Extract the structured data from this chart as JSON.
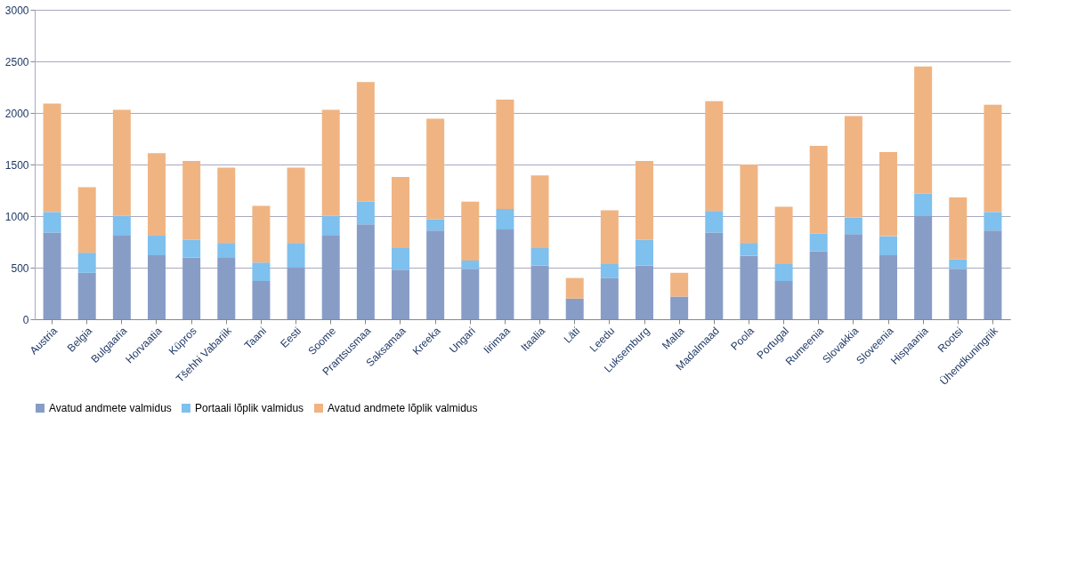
{
  "chart_data": {
    "type": "bar",
    "stacked": true,
    "categories": [
      "Austria",
      "Belgia",
      "Bulgaaria",
      "Horvaatia",
      "Küpros",
      "Tšehhi Vabariik",
      "Taani",
      "Eesti",
      "Soome",
      "Prantsusmaa",
      "Saksamaa",
      "Kreeka",
      "Ungari",
      "Iirimaa",
      "Itaalia",
      "Läti",
      "Leedu",
      "Luksemburg",
      "Malta",
      "Madalmaad",
      "Poola",
      "Portugal",
      "Rumeenia",
      "Slovakkia",
      "Sloveenia",
      "Hispaania",
      "Rootsi",
      "Ühendkuningriik"
    ],
    "series": [
      {
        "name": "Avatud andmete valmidus",
        "color": "#889dc6",
        "values": [
          840,
          450,
          810,
          620,
          600,
          595,
          370,
          500,
          810,
          920,
          480,
          860,
          490,
          870,
          520,
          200,
          400,
          520,
          220,
          840,
          615,
          370,
          660,
          825,
          620,
          1000,
          490,
          860
        ]
      },
      {
        "name": "Portaali lõplik valmidus",
        "color": "#7ec0ee",
        "values": [
          200,
          195,
          195,
          190,
          170,
          145,
          180,
          240,
          195,
          220,
          210,
          110,
          80,
          200,
          170,
          0,
          135,
          250,
          0,
          210,
          125,
          165,
          170,
          160,
          185,
          220,
          90,
          180
        ]
      },
      {
        "name": "Avatud andmete lõplik valmidus",
        "color": "#f0b482",
        "values": [
          1050,
          635,
          1025,
          800,
          765,
          730,
          550,
          730,
          1025,
          1160,
          690,
          975,
          570,
          1060,
          705,
          200,
          520,
          765,
          230,
          1065,
          760,
          555,
          850,
          985,
          815,
          1230,
          600,
          1040
        ]
      }
    ],
    "ylim": [
      0,
      3000
    ],
    "yticks": [
      0,
      500,
      1000,
      1500,
      2000,
      2500,
      3000
    ],
    "grid": "y",
    "legend": "bottom"
  }
}
